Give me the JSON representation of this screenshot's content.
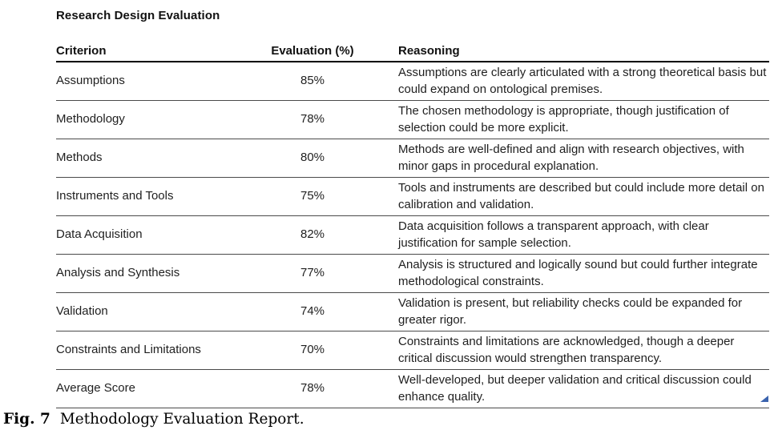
{
  "title": "Research Design Evaluation",
  "table": {
    "headers": [
      "Criterion",
      "Evaluation (%)",
      "Reasoning"
    ],
    "rows": [
      {
        "criterion": "Assumptions",
        "evaluation": "85%",
        "reasoning": "Assumptions are clearly articulated with a strong theoretical basis but could expand on ontological premises."
      },
      {
        "criterion": "Methodology",
        "evaluation": "78%",
        "reasoning": "The chosen methodology is appropriate, though justification of selection could be more explicit."
      },
      {
        "criterion": "Methods",
        "evaluation": "80%",
        "reasoning": "Methods are well-defined and align with research objectives, with minor gaps in procedural explanation."
      },
      {
        "criterion": "Instruments and Tools",
        "evaluation": "75%",
        "reasoning": "Tools and instruments are described but could include more detail on calibration and validation."
      },
      {
        "criterion": "Data Acquisition",
        "evaluation": "82%",
        "reasoning": "Data acquisition follows a transparent approach, with clear justification for sample selection."
      },
      {
        "criterion": "Analysis and Synthesis",
        "evaluation": "77%",
        "reasoning": "Analysis is structured and logically sound but could further integrate methodological constraints."
      },
      {
        "criterion": "Validation",
        "evaluation": "74%",
        "reasoning": "Validation is present, but reliability checks could be expanded for greater rigor."
      },
      {
        "criterion": "Constraints and Limitations",
        "evaluation": "70%",
        "reasoning": "Constraints and limitations are acknowledged, though a deeper critical discussion would strengthen transparency."
      },
      {
        "criterion": "Average Score",
        "evaluation": "78%",
        "reasoning": "Well-developed, but deeper validation and critical discussion could enhance quality."
      }
    ]
  },
  "caption": {
    "label": "Fig. 7",
    "text": "Methodology Evaluation Report."
  },
  "colors": {
    "resize_handle_blue": "#3a63ae",
    "header_rule": "#000000",
    "row_rule": "#4a4a4a"
  }
}
